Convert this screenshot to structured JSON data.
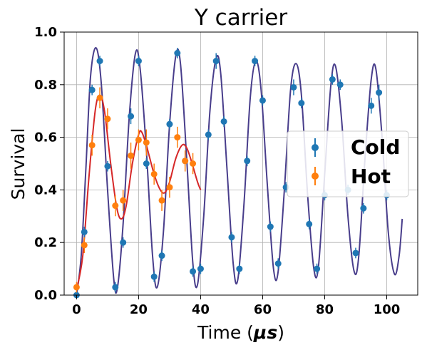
{
  "chart_data": {
    "type": "scatter",
    "title": "Y carrier",
    "xlabel_prefix": "Time (",
    "xlabel_unit": "μs",
    "xlabel_suffix": ")",
    "ylabel": "Survival",
    "xlim": [
      -4,
      110
    ],
    "ylim": [
      0,
      1
    ],
    "xticks": [
      0,
      20,
      40,
      60,
      80,
      100
    ],
    "yticks": [
      0.0,
      0.2,
      0.4,
      0.6,
      0.8,
      1.0
    ],
    "xtick_labels": [
      "0",
      "20",
      "40",
      "60",
      "80",
      "100"
    ],
    "ytick_labels": [
      "0.0",
      "0.2",
      "0.4",
      "0.6",
      "0.8",
      "1.0"
    ],
    "grid": true,
    "legend": {
      "position": "center-right",
      "entries": [
        "Cold",
        "Hot"
      ]
    },
    "series": [
      {
        "name": "Cold",
        "color": "#1f77b4",
        "x": [
          0,
          2.5,
          5,
          7.5,
          10,
          12.5,
          15,
          17.5,
          20,
          22.5,
          25,
          27.5,
          30,
          32.5,
          35,
          37.5,
          40,
          42.5,
          45,
          47.5,
          50,
          52.5,
          55,
          57.5,
          60,
          62.5,
          65,
          67.5,
          70,
          72.5,
          75,
          77.5,
          80,
          82.5,
          85,
          87.5,
          90,
          92.5,
          95,
          97.5,
          100
        ],
        "y": [
          0.0,
          0.24,
          0.78,
          0.89,
          0.49,
          0.03,
          0.2,
          0.68,
          0.89,
          0.5,
          0.07,
          0.15,
          0.65,
          0.92,
          0.51,
          0.09,
          0.1,
          0.61,
          0.89,
          0.66,
          0.22,
          0.1,
          0.51,
          0.89,
          0.74,
          0.26,
          0.12,
          0.41,
          0.79,
          0.73,
          0.27,
          0.1,
          0.38,
          0.82,
          0.8,
          0.4,
          0.16,
          0.33,
          0.72,
          0.77,
          0.38
        ],
        "yerr": [
          0.01,
          0.02,
          0.02,
          0.02,
          0.02,
          0.02,
          0.02,
          0.03,
          0.02,
          0.02,
          0.02,
          0.02,
          0.02,
          0.02,
          0.02,
          0.02,
          0.02,
          0.02,
          0.03,
          0.02,
          0.02,
          0.02,
          0.02,
          0.02,
          0.02,
          0.02,
          0.02,
          0.02,
          0.03,
          0.02,
          0.02,
          0.02,
          0.02,
          0.02,
          0.02,
          0.02,
          0.02,
          0.02,
          0.03,
          0.03,
          0.02
        ]
      },
      {
        "name": "Hot",
        "color": "#ff7f0e",
        "x": [
          0,
          2.5,
          5,
          7.5,
          10,
          12.5,
          15,
          17.5,
          20,
          22.5,
          25,
          27.5,
          30,
          32.5,
          35,
          37.5
        ],
        "y": [
          0.03,
          0.19,
          0.57,
          0.75,
          0.67,
          0.34,
          0.36,
          0.53,
          0.59,
          0.58,
          0.46,
          0.36,
          0.41,
          0.6,
          0.51,
          0.5
        ],
        "yerr": [
          0.02,
          0.03,
          0.04,
          0.04,
          0.04,
          0.04,
          0.04,
          0.05,
          0.04,
          0.05,
          0.04,
          0.04,
          0.04,
          0.04,
          0.04,
          0.04
        ]
      }
    ],
    "fits": [
      {
        "for": "Cold",
        "color": "#483d8b",
        "x_range": [
          0,
          105
        ],
        "samples": [
          [
            0,
            0.0
          ],
          [
            1.5,
            0.15
          ],
          [
            3,
            0.48
          ],
          [
            4.5,
            0.83
          ],
          [
            6.3,
            0.94
          ],
          [
            8,
            0.8
          ],
          [
            10,
            0.4
          ],
          [
            12,
            0.06
          ],
          [
            13.2,
            0.03
          ],
          [
            15,
            0.27
          ],
          [
            17,
            0.68
          ],
          [
            19,
            0.92
          ],
          [
            20.5,
            0.86
          ],
          [
            22.5,
            0.55
          ],
          [
            24.5,
            0.15
          ],
          [
            26,
            0.03
          ],
          [
            28,
            0.24
          ],
          [
            30,
            0.65
          ],
          [
            32,
            0.91
          ],
          [
            33.5,
            0.88
          ],
          [
            35.5,
            0.52
          ],
          [
            37.5,
            0.12
          ],
          [
            39,
            0.04
          ],
          [
            41,
            0.3
          ],
          [
            43,
            0.7
          ],
          [
            45,
            0.9
          ],
          [
            46.5,
            0.84
          ],
          [
            48.5,
            0.48
          ],
          [
            50.5,
            0.12
          ],
          [
            52,
            0.06
          ],
          [
            54,
            0.35
          ],
          [
            56,
            0.75
          ],
          [
            57.8,
            0.89
          ],
          [
            59.5,
            0.78
          ],
          [
            61.5,
            0.42
          ],
          [
            63.5,
            0.1
          ],
          [
            65,
            0.09
          ],
          [
            67,
            0.4
          ],
          [
            69,
            0.78
          ],
          [
            70.8,
            0.88
          ],
          [
            72.5,
            0.76
          ],
          [
            74.5,
            0.38
          ],
          [
            76.5,
            0.1
          ],
          [
            78,
            0.11
          ],
          [
            80,
            0.46
          ],
          [
            82,
            0.8
          ],
          [
            83.5,
            0.87
          ],
          [
            85.5,
            0.66
          ],
          [
            87.5,
            0.3
          ],
          [
            89.5,
            0.09
          ],
          [
            91,
            0.15
          ],
          [
            93,
            0.52
          ],
          [
            95,
            0.82
          ],
          [
            96.5,
            0.86
          ],
          [
            98.5,
            0.6
          ],
          [
            100.5,
            0.24
          ],
          [
            102.5,
            0.08
          ],
          [
            104,
            0.15
          ],
          [
            105,
            0.29
          ]
        ]
      },
      {
        "for": "Hot",
        "color": "#d62728",
        "x_range": [
          0,
          40
        ],
        "samples": [
          [
            0,
            0.02
          ],
          [
            2,
            0.15
          ],
          [
            4,
            0.45
          ],
          [
            6,
            0.7
          ],
          [
            7.5,
            0.76
          ],
          [
            9,
            0.7
          ],
          [
            11,
            0.5
          ],
          [
            13,
            0.33
          ],
          [
            14.5,
            0.29
          ],
          [
            16,
            0.34
          ],
          [
            18,
            0.5
          ],
          [
            20,
            0.61
          ],
          [
            21,
            0.62
          ],
          [
            22.5,
            0.57
          ],
          [
            25,
            0.46
          ],
          [
            27,
            0.4
          ],
          [
            28.5,
            0.39
          ],
          [
            30,
            0.43
          ],
          [
            32,
            0.52
          ],
          [
            34,
            0.57
          ],
          [
            35.5,
            0.56
          ],
          [
            37,
            0.51
          ],
          [
            39,
            0.43
          ],
          [
            40,
            0.4
          ]
        ]
      }
    ]
  }
}
